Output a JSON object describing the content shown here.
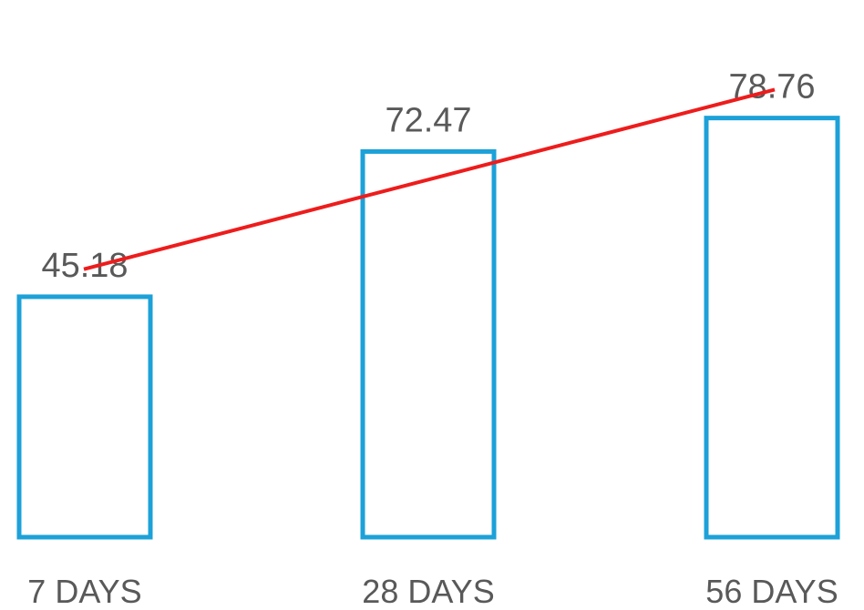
{
  "chart_data": {
    "type": "bar",
    "categories": [
      "7 DAYS",
      "28 DAYS",
      "56 DAYS"
    ],
    "values": [
      45.18,
      72.47,
      78.76
    ],
    "value_labels": [
      "45.18",
      "72.47",
      "78.76"
    ],
    "trendline": {
      "type": "linear",
      "color": "#ee1c1c"
    },
    "title": "",
    "xlabel": "",
    "ylabel": "",
    "ylim": [
      0,
      100
    ],
    "grid": false,
    "legend": "none",
    "colors": {
      "bar_outline": "#1ca1d8",
      "bar_fill": "#ffffff",
      "text": "#595959"
    }
  }
}
